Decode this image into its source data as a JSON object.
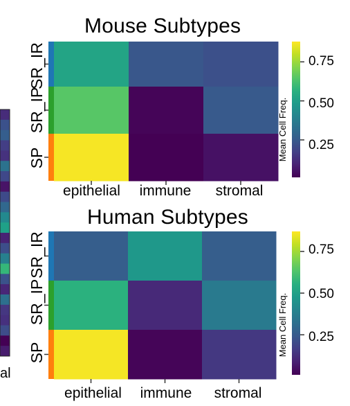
{
  "chart_data": [
    {
      "type": "heatmap",
      "title": "Mouse Subtypes",
      "x_categories": [
        "epithelial",
        "immune",
        "stromal"
      ],
      "y_categories": [
        "SR_IR",
        "SR_IP",
        "SP"
      ],
      "values": [
        [
          0.52,
          0.24,
          0.22
        ],
        [
          0.65,
          0.02,
          0.25
        ],
        [
          0.87,
          0.01,
          0.05
        ]
      ],
      "row_colors": [
        "#1f77b4",
        "#2ca02c",
        "#ff7f0e"
      ],
      "colorbar": {
        "label": "Mean Cell Freq.",
        "ticks": [
          "0.75",
          "0.50",
          "0.25"
        ],
        "tick_values": [
          0.75,
          0.5,
          0.25
        ],
        "range": [
          0.01,
          0.88
        ],
        "colormap": "viridis"
      }
    },
    {
      "type": "heatmap",
      "title": "Human Subtypes",
      "x_categories": [
        "epithelial",
        "immune",
        "stromal"
      ],
      "y_categories": [
        "SR_IR",
        "SR_IP",
        "SP"
      ],
      "values": [
        [
          0.26,
          0.47,
          0.26
        ],
        [
          0.56,
          0.11,
          0.36
        ],
        [
          0.86,
          0.02,
          0.15
        ]
      ],
      "row_colors": [
        "#1f77b4",
        "#2ca02c",
        "#ff7f0e"
      ],
      "colorbar": {
        "label": "Mean Cell Freq.",
        "ticks": [
          "0.75",
          "0.50",
          "0.25"
        ],
        "tick_values": [
          0.75,
          0.5,
          0.25
        ],
        "range": [
          0.01,
          0.87
        ],
        "colormap": "viridis"
      }
    }
  ],
  "left_fragment": {
    "label": "al",
    "colors": [
      "#472c7a",
      "#3b518b",
      "#355e8d",
      "#433e85",
      "#46327e",
      "#2c728e",
      "#3f4889",
      "#481467",
      "#3e4a89",
      "#31688e",
      "#23898e",
      "#1fa188",
      "#482374",
      "#3d4e8a",
      "#27808e",
      "#35b779",
      "#3b528b",
      "#482677",
      "#2d708e",
      "#453781",
      "#46307e",
      "#3e4c8a",
      "#440154",
      "#481c6e"
    ]
  }
}
